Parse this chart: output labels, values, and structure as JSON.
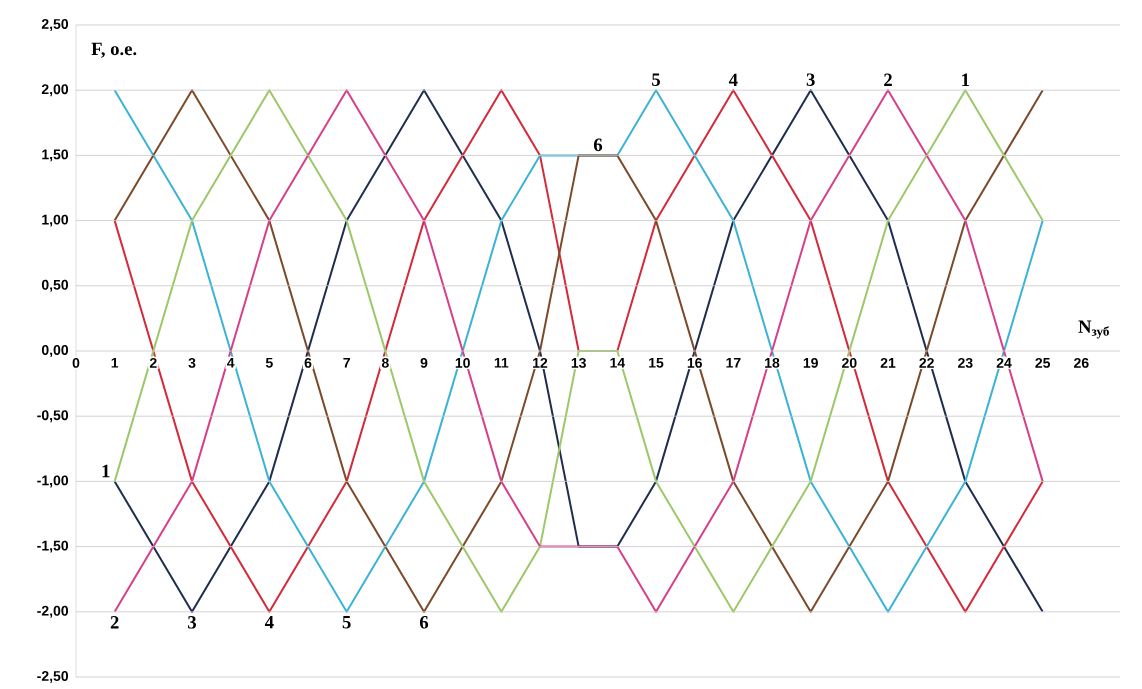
{
  "chart_data": {
    "type": "line",
    "xlabel": "N$_{зуб}$",
    "ylabel": "F, о.е.",
    "x": [
      1,
      3,
      5,
      7,
      9,
      11,
      12,
      13,
      14,
      15,
      17,
      19,
      21,
      23,
      25
    ],
    "series": [
      {
        "color": "#1f2d4e",
        "values": [
          -1,
          -2,
          -1,
          1,
          2,
          1,
          0,
          -1.5,
          -1.5,
          -1,
          1,
          2,
          1,
          -1,
          -2
        ]
      },
      {
        "color": "#d42a3a",
        "values": [
          1,
          -1,
          -2,
          -1,
          1,
          2,
          1.5,
          0,
          0,
          1,
          2,
          1,
          -1,
          -2,
          -1
        ]
      },
      {
        "color": "#3bb3d6",
        "values": [
          2,
          1,
          -1,
          -2,
          -1,
          1,
          1.5,
          1.5,
          1.5,
          2,
          1,
          -1,
          -2,
          -1,
          1
        ]
      },
      {
        "color": "#7b4a2a",
        "values": [
          1,
          2,
          1,
          -1,
          -2,
          -1,
          0,
          1.5,
          1.5,
          1,
          -1,
          -2,
          -1,
          1,
          2
        ]
      },
      {
        "color": "#9dc86a",
        "values": [
          -1,
          1,
          2,
          1,
          -1,
          -2,
          -1.5,
          0,
          0,
          -1,
          -2,
          -1,
          1,
          2,
          1
        ]
      },
      {
        "color": "#d6408a",
        "values": [
          -2,
          -1,
          1,
          2,
          1,
          -1,
          -1.5,
          -1.5,
          -1.5,
          -2,
          -1,
          1,
          2,
          1,
          -1
        ]
      }
    ],
    "xlim": [
      0,
      27
    ],
    "xticks": [
      0,
      1,
      2,
      3,
      4,
      5,
      6,
      7,
      8,
      9,
      10,
      11,
      12,
      13,
      14,
      15,
      16,
      17,
      18,
      19,
      20,
      21,
      22,
      23,
      24,
      25,
      26
    ],
    "ylim": [
      -2.5,
      2.5
    ],
    "yticks": [
      {
        "value": -2.5,
        "label": "-2,50"
      },
      {
        "value": -2,
        "label": "-2,00"
      },
      {
        "value": -1.5,
        "label": "-1,50"
      },
      {
        "value": -1,
        "label": "-1,00"
      },
      {
        "value": -0.5,
        "label": "-0,50"
      },
      {
        "value": 0,
        "label": "0,00"
      },
      {
        "value": 0.5,
        "label": "0,50"
      },
      {
        "value": 1,
        "label": "1,00"
      },
      {
        "value": 1.5,
        "label": "1,50"
      },
      {
        "value": 2,
        "label": "2,00"
      },
      {
        "value": 2.5,
        "label": "2,50"
      }
    ],
    "grid": "y",
    "marker": "none",
    "line_style": "solid",
    "annotations": [
      {
        "text": "1",
        "x": 1,
        "y": -1
      },
      {
        "text": "2",
        "x": 1,
        "y": -2
      },
      {
        "text": "3",
        "x": 3,
        "y": -2
      },
      {
        "text": "4",
        "x": 5,
        "y": -2
      },
      {
        "text": "5",
        "x": 7,
        "y": -2
      },
      {
        "text": "6",
        "x": 9,
        "y": -2
      },
      {
        "text": "6",
        "x": 13.5,
        "y": 1.5
      },
      {
        "text": "5",
        "x": 15,
        "y": 2
      },
      {
        "text": "4",
        "x": 17,
        "y": 2
      },
      {
        "text": "3",
        "x": 19,
        "y": 2
      },
      {
        "text": "2",
        "x": 21,
        "y": 2
      },
      {
        "text": "1",
        "x": 23,
        "y": 2
      }
    ]
  }
}
